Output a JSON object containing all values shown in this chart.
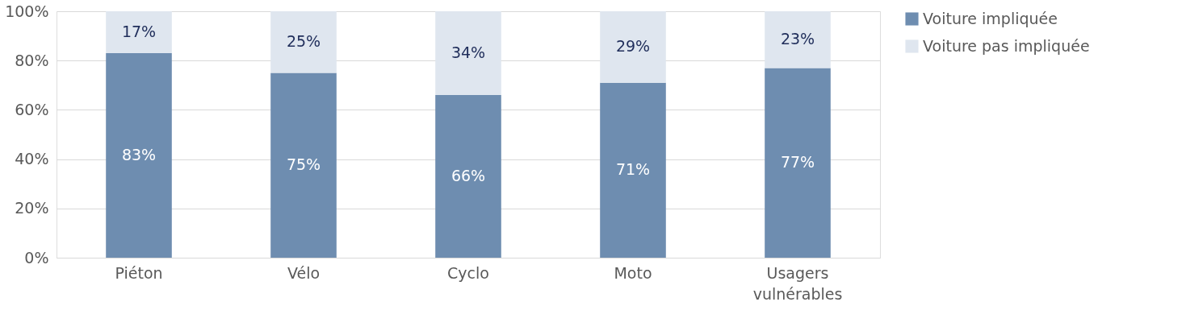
{
  "chart_data": {
    "type": "bar",
    "stacked": true,
    "categories": [
      "Piéton",
      "Vélo",
      "Cyclo",
      "Moto",
      "Usagers vulnérables"
    ],
    "series": [
      {
        "name": "Voiture impliquée",
        "color": "#6e8db0",
        "values": [
          83,
          75,
          66,
          71,
          77
        ],
        "value_labels": [
          "83%",
          "75%",
          "66%",
          "71%",
          "77%"
        ]
      },
      {
        "name": "Voiture pas impliquée",
        "color": "#dfe6ef",
        "values": [
          17,
          25,
          34,
          29,
          23
        ],
        "value_labels": [
          "17%",
          "25%",
          "34%",
          "29%",
          "23%"
        ]
      }
    ],
    "ylim": [
      0,
      100
    ],
    "yticks": [
      {
        "value": 0,
        "label": "0%"
      },
      {
        "value": 20,
        "label": "20%"
      },
      {
        "value": 40,
        "label": "40%"
      },
      {
        "value": 60,
        "label": "60%"
      },
      {
        "value": 80,
        "label": "80%"
      },
      {
        "value": 100,
        "label": "100%"
      }
    ],
    "grid": "y",
    "legend": "right"
  }
}
